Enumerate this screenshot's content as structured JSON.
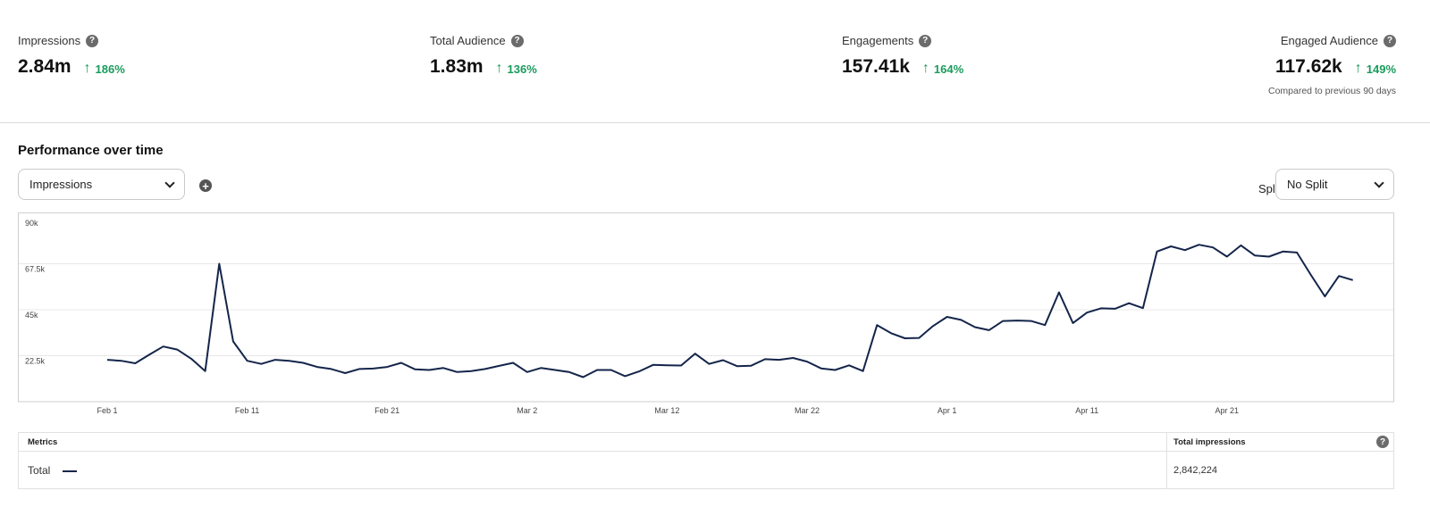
{
  "kpis": [
    {
      "label": "Impressions",
      "value": "2.84m",
      "delta": "186%"
    },
    {
      "label": "Total Audience",
      "value": "1.83m",
      "delta": "136%"
    },
    {
      "label": "Engagements",
      "value": "157.41k",
      "delta": "164%"
    },
    {
      "label": "Engaged Audience",
      "value": "117.62k",
      "delta": "149%"
    }
  ],
  "comparison_note": "Compared to previous 90 days",
  "section_title": "Performance over time",
  "metric_select": {
    "value": "Impressions"
  },
  "split": {
    "label": "Split by",
    "value": "No Split"
  },
  "chart_data": {
    "type": "line",
    "x_tick_labels": [
      "Feb 1",
      "Feb 11",
      "Feb 21",
      "Mar 2",
      "Mar 12",
      "Mar 22",
      "Apr 1",
      "Apr 11",
      "Apr 21"
    ],
    "y_tick_labels": [
      "90k",
      "67.5k",
      "45k",
      "22.5k"
    ],
    "ylim": [
      0,
      90000
    ],
    "grid": true,
    "series": [
      {
        "color": "#14254a",
        "values": [
          20500,
          20000,
          18800,
          23000,
          27000,
          25500,
          21000,
          15000,
          67500,
          29500,
          20000,
          18500,
          20500,
          20000,
          19000,
          17000,
          16000,
          14000,
          16000,
          16200,
          17000,
          19000,
          15800,
          15500,
          16500,
          14500,
          15000,
          16000,
          17500,
          19000,
          14500,
          16500,
          15500,
          14500,
          12000,
          15500,
          15500,
          12500,
          14800,
          18000,
          17800,
          17700,
          23500,
          18500,
          20300,
          17400,
          17600,
          20800,
          20500,
          21400,
          19600,
          16300,
          15500,
          17800,
          15000,
          37500,
          33500,
          31000,
          31200,
          37000,
          41500,
          40000,
          36500,
          35000,
          39500,
          39700,
          39500,
          37500,
          53500,
          38500,
          43600,
          45700,
          45500,
          48200,
          45800,
          73500,
          76000,
          74200,
          76800,
          75500,
          71000,
          76500,
          71500,
          71000,
          73500,
          73000,
          62000,
          51500,
          61500,
          59500
        ]
      }
    ]
  },
  "metrics_table": {
    "headers": {
      "metric": "Metrics",
      "value": "Total impressions"
    },
    "rows": [
      {
        "metric": "Total",
        "value": "2,842,224"
      }
    ]
  }
}
